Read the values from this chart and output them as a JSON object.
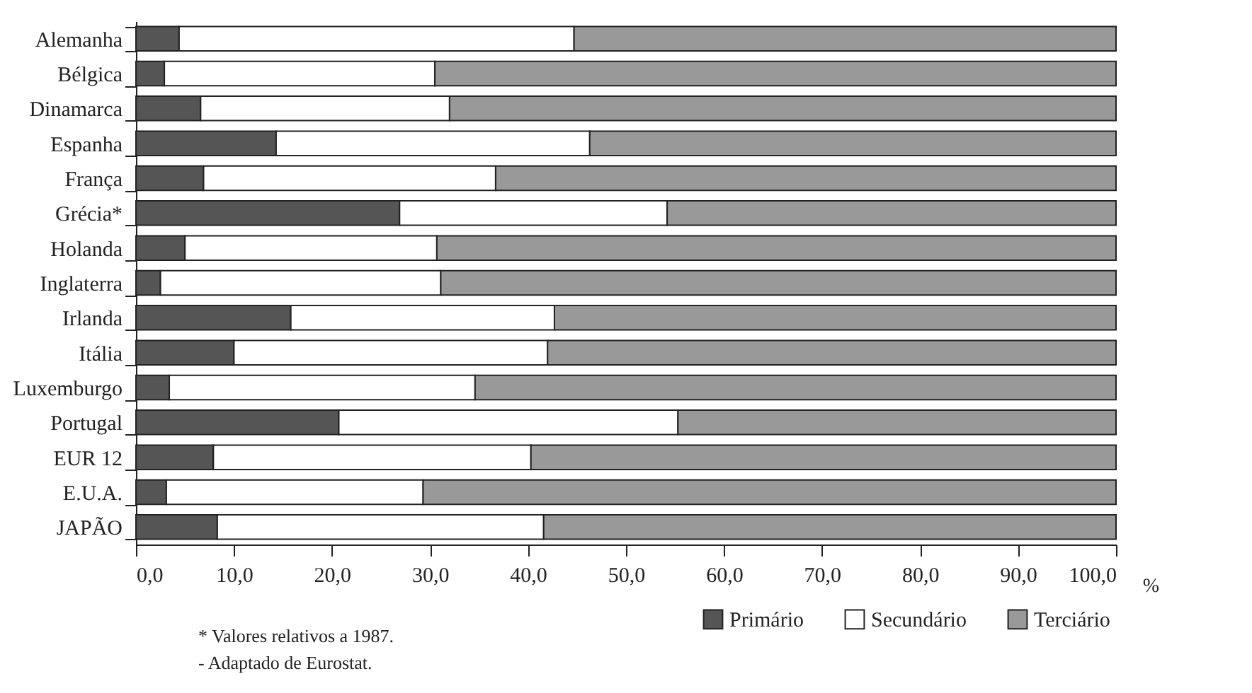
{
  "chart_data": {
    "type": "bar",
    "orientation": "horizontal",
    "stacked": true,
    "categories": [
      "Alemanha",
      "Bélgica",
      "Dinamarca",
      "Espanha",
      "França",
      "Grécia*",
      "Holanda",
      "Inglaterra",
      "Irlanda",
      "Itália",
      "Luxemburgo",
      "Portugal",
      "EUR 12",
      "E.U.A.",
      "JAPÃO"
    ],
    "series": [
      {
        "name": "Primário",
        "color": "#555555",
        "values": [
          4.4,
          2.9,
          6.6,
          14.3,
          6.9,
          26.9,
          5.0,
          2.5,
          15.8,
          10.0,
          3.4,
          20.7,
          7.9,
          3.1,
          8.3
        ]
      },
      {
        "name": "Secundário",
        "color": "#ffffff",
        "values": [
          40.3,
          27.6,
          25.4,
          32.0,
          29.8,
          27.3,
          25.7,
          28.6,
          26.9,
          32.0,
          31.2,
          34.6,
          32.4,
          26.2,
          33.3
        ]
      },
      {
        "name": "Terciário",
        "color": "#999999",
        "values": [
          55.3,
          69.5,
          68.0,
          53.7,
          63.3,
          45.8,
          69.3,
          68.9,
          57.3,
          58.0,
          65.4,
          44.7,
          59.7,
          70.7,
          58.4
        ]
      }
    ],
    "xlim": [
      0,
      100
    ],
    "xticks": [
      {
        "value": 0,
        "label": "0,0"
      },
      {
        "value": 10,
        "label": "10,0"
      },
      {
        "value": 20,
        "label": "20,0"
      },
      {
        "value": 30,
        "label": "30,0"
      },
      {
        "value": 40,
        "label": "40,0"
      },
      {
        "value": 50,
        "label": "50,0"
      },
      {
        "value": 60,
        "label": "60,0"
      },
      {
        "value": 70,
        "label": "70,0"
      },
      {
        "value": 80,
        "label": "80,0"
      },
      {
        "value": 90,
        "label": "90,0"
      },
      {
        "value": 100,
        "label": "100,0"
      }
    ],
    "xlabel": "%",
    "legend": "bottom right",
    "annotations": [
      "* Valores relativos a 1987.",
      "- Adaptado de Eurostat."
    ]
  }
}
